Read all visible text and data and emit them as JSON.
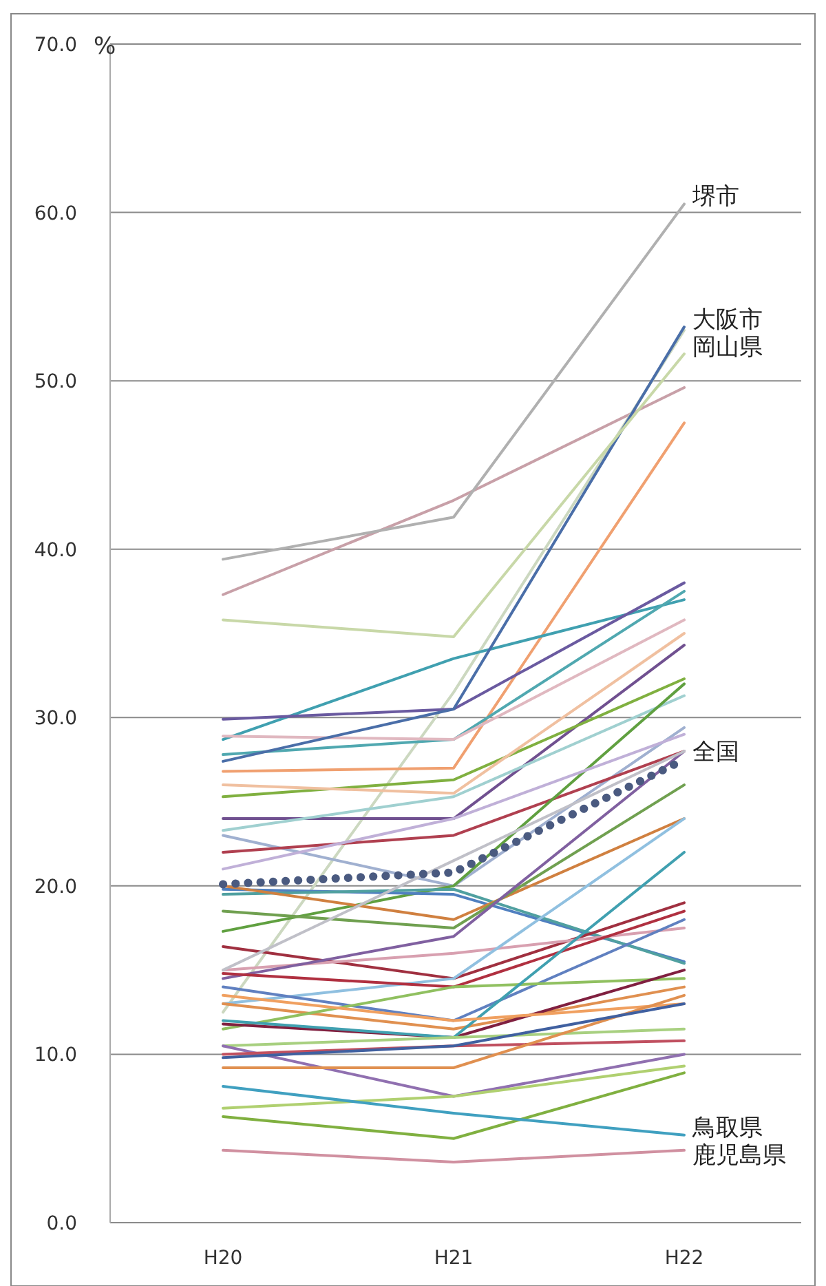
{
  "chart_data": {
    "type": "line",
    "ylabel": "%",
    "categories": [
      "H20",
      "H21",
      "H22"
    ],
    "ylim": [
      0,
      70
    ],
    "yticks": [
      {
        "value": 0,
        "label": "0.0"
      },
      {
        "value": 10,
        "label": "10.0"
      },
      {
        "value": 20,
        "label": "20.0"
      },
      {
        "value": 30,
        "label": "30.0"
      },
      {
        "value": 40,
        "label": "40.0"
      },
      {
        "value": 50,
        "label": "50.0"
      },
      {
        "value": 60,
        "label": "60.0"
      },
      {
        "value": 70,
        "label": "70.0"
      }
    ],
    "grid": "y",
    "line_style": "solid",
    "series": [
      {
        "color": "#c8a0a8",
        "values": [
          37.3,
          42.9,
          49.6
        ]
      },
      {
        "color": "#ccd8c0",
        "values": [
          12.5,
          31.5,
          53.0
        ]
      },
      {
        "color": "#f0a070",
        "values": [
          26.8,
          27.0,
          47.5
        ]
      },
      {
        "color": "#40a0b0",
        "values": [
          28.7,
          33.5,
          37.0
        ]
      },
      {
        "color": "#6a5aa0",
        "values": [
          29.9,
          30.5,
          38.0
        ]
      },
      {
        "color": "#50a8b0",
        "values": [
          27.8,
          28.7,
          37.5
        ]
      },
      {
        "color": "#e0b8c0",
        "values": [
          28.9,
          28.7,
          35.8
        ]
      },
      {
        "color": "#705090",
        "values": [
          24.0,
          24.0,
          34.3
        ]
      },
      {
        "color": "#80b040",
        "values": [
          25.3,
          26.3,
          32.3
        ]
      },
      {
        "color": "#a0d0d0",
        "values": [
          23.3,
          25.3,
          31.3
        ]
      },
      {
        "color": "#f0c0a0",
        "values": [
          26.0,
          25.5,
          35.0
        ]
      },
      {
        "color": "#a0b0d0",
        "values": [
          23.0,
          20.0,
          29.4
        ]
      },
      {
        "color": "#b04050",
        "values": [
          22.0,
          23.0,
          28.0
        ]
      },
      {
        "color": "#60a040",
        "values": [
          17.3,
          20.0,
          32.0
        ]
      },
      {
        "color": "#c0b0d8",
        "values": [
          21.0,
          24.0,
          29.0
        ]
      },
      {
        "color": "#5080c0",
        "values": [
          19.8,
          19.5,
          15.5
        ]
      },
      {
        "color": "#50a0a0",
        "values": [
          19.5,
          19.8,
          15.4
        ]
      },
      {
        "color": "#d08040",
        "values": [
          20.0,
          18.0,
          24.0
        ]
      },
      {
        "color": "#70a050",
        "values": [
          18.5,
          17.5,
          26.0
        ]
      },
      {
        "color": "#a03040",
        "values": [
          16.4,
          14.5,
          19.0
        ]
      },
      {
        "color": "#d8a0b0",
        "values": [
          15.0,
          16.0,
          17.5
        ]
      },
      {
        "color": "#8060a0",
        "values": [
          14.5,
          17.0,
          28.0
        ]
      },
      {
        "color": "#c0c0c8",
        "values": [
          15.0,
          21.5,
          28.0
        ]
      },
      {
        "color": "#90c0e0",
        "values": [
          13.0,
          14.5,
          24.0
        ]
      },
      {
        "color": "#b03040",
        "values": [
          14.8,
          14.0,
          18.5
        ]
      },
      {
        "color": "#6080c0",
        "values": [
          14.0,
          12.0,
          18.0
        ]
      },
      {
        "color": "#e09050",
        "values": [
          13.0,
          11.5,
          14.0
        ]
      },
      {
        "color": "#90c060",
        "values": [
          11.5,
          14.0,
          14.5
        ]
      },
      {
        "color": "#802040",
        "values": [
          11.8,
          11.0,
          15.0
        ]
      },
      {
        "color": "#40a0b0",
        "values": [
          12.0,
          11.0,
          22.0
        ]
      },
      {
        "color": "#f0a060",
        "values": [
          13.5,
          12.0,
          13.0
        ]
      },
      {
        "color": "#a8d080",
        "values": [
          10.5,
          11.0,
          11.5
        ]
      },
      {
        "color": "#9070b0",
        "values": [
          10.5,
          7.5,
          10.0
        ]
      },
      {
        "color": "#c05060",
        "values": [
          10.0,
          10.5,
          10.8
        ]
      },
      {
        "color": "#e09050",
        "values": [
          9.2,
          9.2,
          13.5
        ]
      },
      {
        "color": "#4060a0",
        "values": [
          9.8,
          10.5,
          13.0
        ]
      },
      {
        "color": "#b0d070",
        "values": [
          6.8,
          7.5,
          9.3
        ]
      },
      {
        "color": "#80b040",
        "values": [
          6.3,
          5.0,
          8.9
        ]
      },
      {
        "name": "堺市",
        "color": "#b0b0b0",
        "values": [
          39.4,
          41.9,
          60.5
        ]
      },
      {
        "name": "大阪市",
        "color": "#4a6ea8",
        "values": [
          27.4,
          30.5,
          53.2
        ]
      },
      {
        "name": "岡山県",
        "color": "#c8d8a8",
        "values": [
          35.8,
          34.8,
          51.6
        ]
      },
      {
        "name": "全国",
        "color": "#4a5a80",
        "line_style": "dotted",
        "values": [
          20.1,
          20.8,
          27.5
        ]
      },
      {
        "name": "鳥取県",
        "color": "#40a0c0",
        "values": [
          8.1,
          6.5,
          5.2
        ]
      },
      {
        "name": "鹿児島県",
        "color": "#d090a0",
        "values": [
          4.3,
          3.6,
          4.3
        ]
      }
    ]
  }
}
